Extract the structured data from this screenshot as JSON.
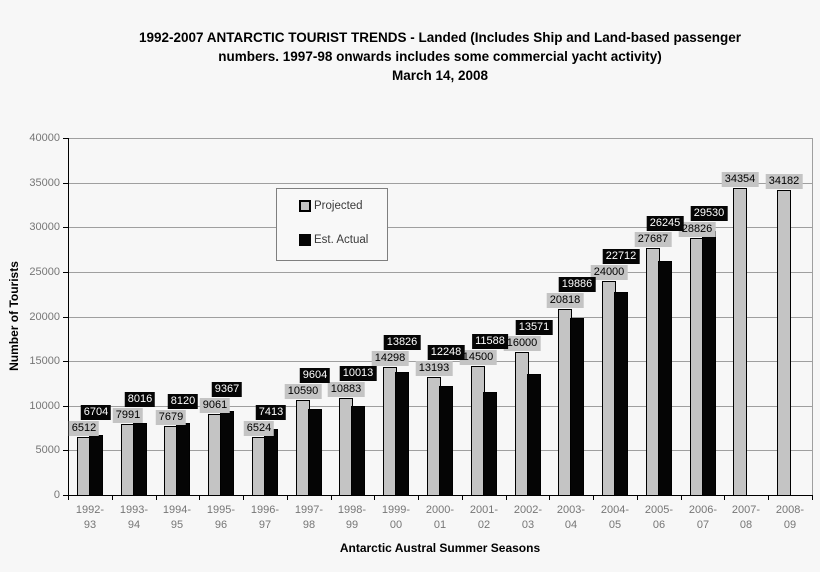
{
  "title": {
    "lines": [
      "1992-2007 ANTARCTIC TOURIST TRENDS - Landed (Includes Ship and Land-based passenger",
      "numbers. 1997-98 onwards includes some commercial yacht activity)",
      "March 14, 2008"
    ]
  },
  "chart_data": {
    "type": "bar",
    "title": "1992-2007 ANTARCTIC TOURIST TRENDS - Landed (Includes Ship and Land-based passenger numbers. 1997-98 onwards includes some commercial yacht activity)",
    "date_line": "March 14, 2008",
    "xlabel": "Antarctic Austral Summer Seasons",
    "ylabel": "Number of Tourists",
    "ylim": [
      0,
      40000
    ],
    "yticks": [
      0,
      5000,
      10000,
      15000,
      20000,
      25000,
      30000,
      35000,
      40000
    ],
    "grid": "horizontal",
    "legend_position": "inside-upper-left",
    "categories": [
      "1992-93",
      "1993-94",
      "1994-95",
      "1995-96",
      "1996-97",
      "1997-98",
      "1998-99",
      "1999-00",
      "2000-01",
      "2001-02",
      "2002-03",
      "2003-04",
      "2004-05",
      "2005-06",
      "2006-07",
      "2007-08",
      "2008-09"
    ],
    "series": [
      {
        "name": "Projected",
        "color": "#c4c4c4",
        "values": [
          6512,
          7991,
          7679,
          9061,
          6524,
          10590,
          10883,
          14298,
          13193,
          14500,
          16000,
          20818,
          24000,
          27687,
          28826,
          34354,
          34182
        ]
      },
      {
        "name": "Est. Actual",
        "color": "#050505",
        "values": [
          6704,
          8016,
          8120,
          9367,
          7413,
          9604,
          10013,
          13826,
          12248,
          11588,
          13571,
          19886,
          22712,
          26245,
          29530,
          null,
          null
        ]
      }
    ]
  },
  "colors": {
    "background": "#f7f7f7",
    "bar_projected": "#c4c4c4",
    "bar_actual": "#050505",
    "gridline": "#9f9f9f",
    "axis": "#000000",
    "tick_label": "#767676",
    "label_projected_bg": "#c4c4c4",
    "label_projected_text": "#000000",
    "label_actual_bg": "#050505",
    "label_actual_text": "#ffffff",
    "legend_border": "#7f7f7f"
  }
}
